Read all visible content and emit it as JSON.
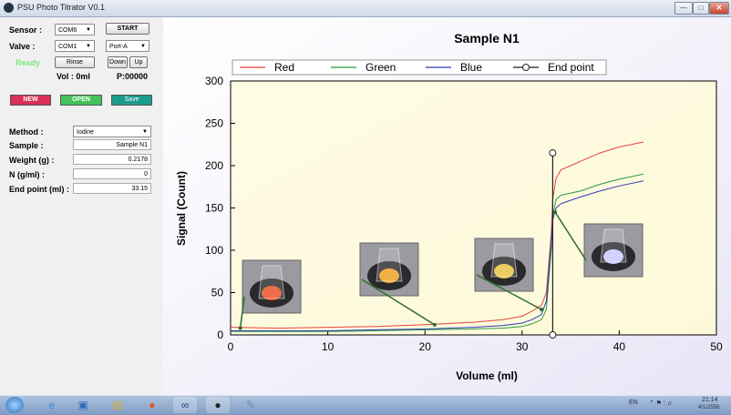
{
  "window": {
    "title": "PSU Photo Titrator V0.1",
    "minimize": "—",
    "maximize": "□",
    "close": "✕"
  },
  "controls": {
    "sensor_label": "Sensor :",
    "sensor_value": "COM6",
    "start_label": "START",
    "valve_label": "Valve  :",
    "valve_value": "COM1",
    "port_value": "Port-A",
    "status": "Ready",
    "rinse_label": "Rinse",
    "down_label": "Down",
    "up_label": "Up",
    "vol": "Vol : 0ml",
    "pos": "P:00000",
    "new_label": "NEW",
    "open_label": "OPEN",
    "save_label": "Save"
  },
  "form": {
    "method_label": "Method :",
    "method_value": "Iodine",
    "sample_label": "Sample :",
    "sample_value": "Sample N1",
    "weight_label": "Weight (g) :",
    "weight_value": "0.2178",
    "n_label": "N (g/ml) :",
    "n_value": "0",
    "endpoint_label": "End point (ml) :",
    "endpoint_value": "33.15"
  },
  "colors": {
    "red": "#e8413c",
    "green": "#2e9a3e",
    "blue": "#2c3ab8",
    "new_btn": "#d93058",
    "open_btn": "#43c35a",
    "save_btn": "#1b9b8e",
    "arrow": "#2e6b2e"
  },
  "chart_data": {
    "type": "line",
    "title": "Sample N1",
    "xlabel": "Volume (ml)",
    "ylabel": "Signal (Count)",
    "xlim": [
      0,
      50
    ],
    "ylim": [
      0,
      300
    ],
    "xticks": [
      0,
      10,
      20,
      30,
      40,
      50
    ],
    "yticks": [
      0,
      50,
      100,
      150,
      200,
      250,
      300
    ],
    "grid": false,
    "legend_position": "top",
    "series": [
      {
        "name": "Red",
        "color": "#e8413c",
        "x": [
          0,
          5,
          10,
          15,
          20,
          25,
          28,
          30,
          31,
          32,
          32.5,
          33,
          33.15,
          33.5,
          34,
          36,
          38,
          40,
          42.5
        ],
        "y": [
          9,
          8,
          9,
          10,
          12,
          15,
          18,
          22,
          28,
          35,
          50,
          120,
          160,
          185,
          195,
          205,
          215,
          222,
          228
        ]
      },
      {
        "name": "Green",
        "color": "#2e9a3e",
        "x": [
          0,
          5,
          10,
          15,
          20,
          25,
          28,
          30,
          31,
          32,
          32.5,
          33,
          33.15,
          33.5,
          34,
          36,
          38,
          40,
          42.5
        ],
        "y": [
          4,
          4,
          4,
          5,
          6,
          7,
          8,
          10,
          13,
          18,
          30,
          100,
          140,
          160,
          165,
          170,
          178,
          184,
          190
        ]
      },
      {
        "name": "Blue",
        "color": "#2c3ab8",
        "x": [
          0,
          5,
          10,
          15,
          20,
          25,
          28,
          30,
          31,
          32,
          32.5,
          33,
          33.15,
          33.5,
          34,
          36,
          38,
          40,
          42.5
        ],
        "y": [
          5,
          5,
          5,
          6,
          7,
          9,
          11,
          14,
          18,
          24,
          40,
          110,
          136,
          150,
          155,
          163,
          170,
          176,
          182
        ]
      },
      {
        "name": "End point",
        "color": "#222222",
        "x": [
          33.15,
          33.15
        ],
        "y": [
          0,
          215
        ]
      }
    ]
  },
  "taskbar": {
    "lang": "EN",
    "time": "21:14",
    "date": "4/1/2558"
  }
}
